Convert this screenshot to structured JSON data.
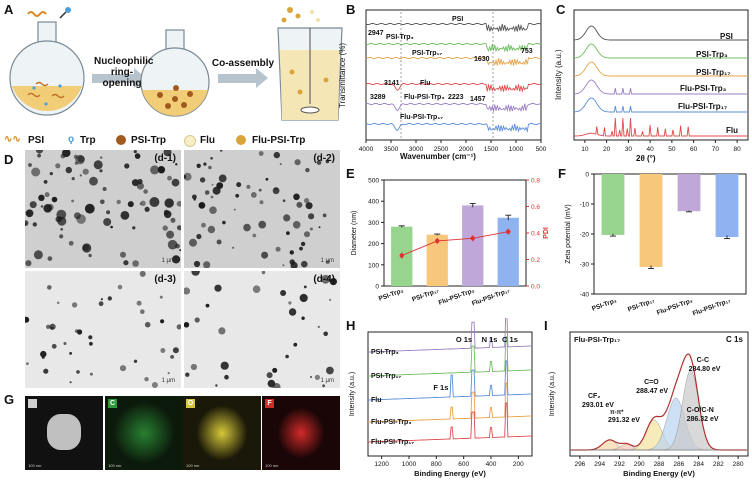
{
  "panelA": {
    "label": "A",
    "step1": "Nucleophilic\nring-opening",
    "step2": "Co-assembly",
    "legend": [
      {
        "text": "PSI",
        "icon": "wavy-line-icon"
      },
      {
        "text": "Trp",
        "icon": "trp-molecule-icon"
      },
      {
        "text": "PSI-Trp",
        "icon": "brown-dot-icon"
      },
      {
        "text": "Flu",
        "icon": "cream-dot-icon"
      },
      {
        "text": "Flu-PSI-Trp",
        "icon": "gold-dot-icon"
      }
    ]
  },
  "panelB": {
    "label": "B",
    "ylabel": "Transmittance (%)",
    "xlabel": "Wavenumber (cm⁻¹)",
    "xticks": [
      "4000",
      "3500",
      "3000",
      "2500",
      "2000",
      "1500",
      "1000",
      "500"
    ],
    "curves": [
      {
        "name": "PSI",
        "color": "#555555"
      },
      {
        "name": "PSI-Trp₃",
        "color": "#6fbf5f"
      },
      {
        "name": "PSI-Trp₁₇",
        "color": "#e6a24a"
      },
      {
        "name": "Flu",
        "color": "#e04b4b"
      },
      {
        "name": "Flu-PSI-Trp₃",
        "color": "#9b7fc4"
      },
      {
        "name": "Flu-PSI-Trp₁₇",
        "color": "#5b8fd9"
      }
    ],
    "peaks": [
      "2947",
      "753",
      "1630",
      "3141",
      "3289",
      "2223",
      "1457"
    ]
  },
  "panelC": {
    "label": "C",
    "ylabel": "Intensity (a.u.)",
    "xlabel": "2θ (°)",
    "xticks": [
      "10",
      "20",
      "30",
      "40",
      "50",
      "60",
      "70",
      "80"
    ],
    "curves": [
      {
        "name": "PSI",
        "color": "#555555"
      },
      {
        "name": "PSI-Trp₃",
        "color": "#6fbf5f"
      },
      {
        "name": "PSI-Trp₁₇",
        "color": "#e6a24a"
      },
      {
        "name": "Flu-PSI-Trp₃",
        "color": "#9b7fc4"
      },
      {
        "name": "Flu-PSI-Trp₁₇",
        "color": "#5b8fd9"
      },
      {
        "name": "Flu",
        "color": "#e04b4b"
      }
    ]
  },
  "panelD": {
    "label": "D",
    "images": [
      {
        "label": "(d-1)",
        "scale": "1 μm"
      },
      {
        "label": "(d-2)",
        "scale": "1 μm"
      },
      {
        "label": "(d-3)",
        "scale": "1 μm"
      },
      {
        "label": "(d-4)",
        "scale": "1 μm"
      }
    ]
  },
  "panelG": {
    "label": "G",
    "maps": [
      {
        "tag": "",
        "color": "#cfcfcf",
        "scale": "100 nm"
      },
      {
        "tag": "C",
        "color": "#2f9a3a",
        "scale": "100 nm"
      },
      {
        "tag": "O",
        "color": "#d6c83a",
        "scale": "100 nm"
      },
      {
        "tag": "F",
        "color": "#d02a2a",
        "scale": "100 nm"
      }
    ]
  },
  "chart_data": [
    {
      "id": "E",
      "type": "bar",
      "title": "",
      "categories": [
        "PSI-Trp₃",
        "PSI-Trp₁₇",
        "Flu-PSI-Trp₃",
        "Flu-PSI-Trp₁₇"
      ],
      "series": [
        {
          "name": "Diameter (nm)",
          "values": [
            280,
            242,
            380,
            322
          ],
          "errors": [
            4,
            3,
            9,
            12
          ],
          "colors": [
            "#97d48e",
            "#f7c77c",
            "#bfa7d9",
            "#8fb2f0"
          ]
        },
        {
          "name": "PDI",
          "values": [
            0.23,
            0.34,
            0.36,
            0.41
          ],
          "color": "#e03030"
        }
      ],
      "ylabel": "Diameter (nm)",
      "y2label": "PDI",
      "ylim": [
        0,
        500
      ],
      "y2lim": [
        0,
        0.8
      ],
      "yticks": [
        "0",
        "100",
        "200",
        "300",
        "400",
        "500"
      ],
      "y2ticks": [
        "0.0",
        "0.2",
        "0.4",
        "0.6",
        "0.8"
      ]
    },
    {
      "id": "F",
      "type": "bar",
      "categories": [
        "PSI-Trp₃",
        "PSI-Trp₁₇",
        "Flu-PSI-Trp₃",
        "Flu-PSI-Trp₁₇"
      ],
      "series": [
        {
          "name": "Zeta potential (mV)",
          "values": [
            -20.3,
            -31,
            -12.4,
            -21
          ],
          "errors": [
            0.4,
            0.5,
            0.2,
            0.5
          ],
          "colors": [
            "#97d48e",
            "#f7c77c",
            "#bfa7d9",
            "#8fb2f0"
          ]
        }
      ],
      "ylabel": "Zeta potential (mV)",
      "ylim": [
        -40,
        0
      ],
      "yticks": [
        "0",
        "-10",
        "-20",
        "-30",
        "-40"
      ]
    },
    {
      "id": "H",
      "type": "line",
      "title": "",
      "xlabel": "Binding Energy (eV)",
      "ylabel": "Intensity (a.u.)",
      "xticks": [
        "1200",
        "1000",
        "800",
        "600",
        "400",
        "200"
      ],
      "series": [
        {
          "name": "PSI-Trp₃",
          "color": "#9b7fc4"
        },
        {
          "name": "PSI-Trp₁₇",
          "color": "#6fbf5f"
        },
        {
          "name": "Flu",
          "color": "#5b8fd9"
        },
        {
          "name": "Flu-PSI-Trp₃",
          "color": "#e6a24a"
        },
        {
          "name": "Flu-PSI-Trp₁₇",
          "color": "#e04b4b"
        }
      ],
      "annotations": [
        "O 1s",
        "N 1s",
        "C 1s",
        "F 1s"
      ]
    },
    {
      "id": "I",
      "type": "line",
      "title": "Flu-PSI-Trp₁₇",
      "subtitle": "C 1s",
      "xlabel": "Binding Energy (eV)",
      "ylabel": "Intensity (a.u.)",
      "xticks": [
        "296",
        "294",
        "292",
        "290",
        "288",
        "286",
        "284",
        "282",
        "280"
      ],
      "peaks": [
        {
          "label": "CF₂",
          "value": "293.01 eV"
        },
        {
          "label": "π-π*",
          "value": "291.32 eV"
        },
        {
          "label": "C=O",
          "value": "288.47 eV"
        },
        {
          "label": "C-C",
          "value": "284.80 eV"
        },
        {
          "label": "C-O/C-N",
          "value": "286.32 eV"
        }
      ]
    }
  ],
  "labels": {
    "E": "E",
    "F": "F",
    "H": "H",
    "I": "I"
  }
}
